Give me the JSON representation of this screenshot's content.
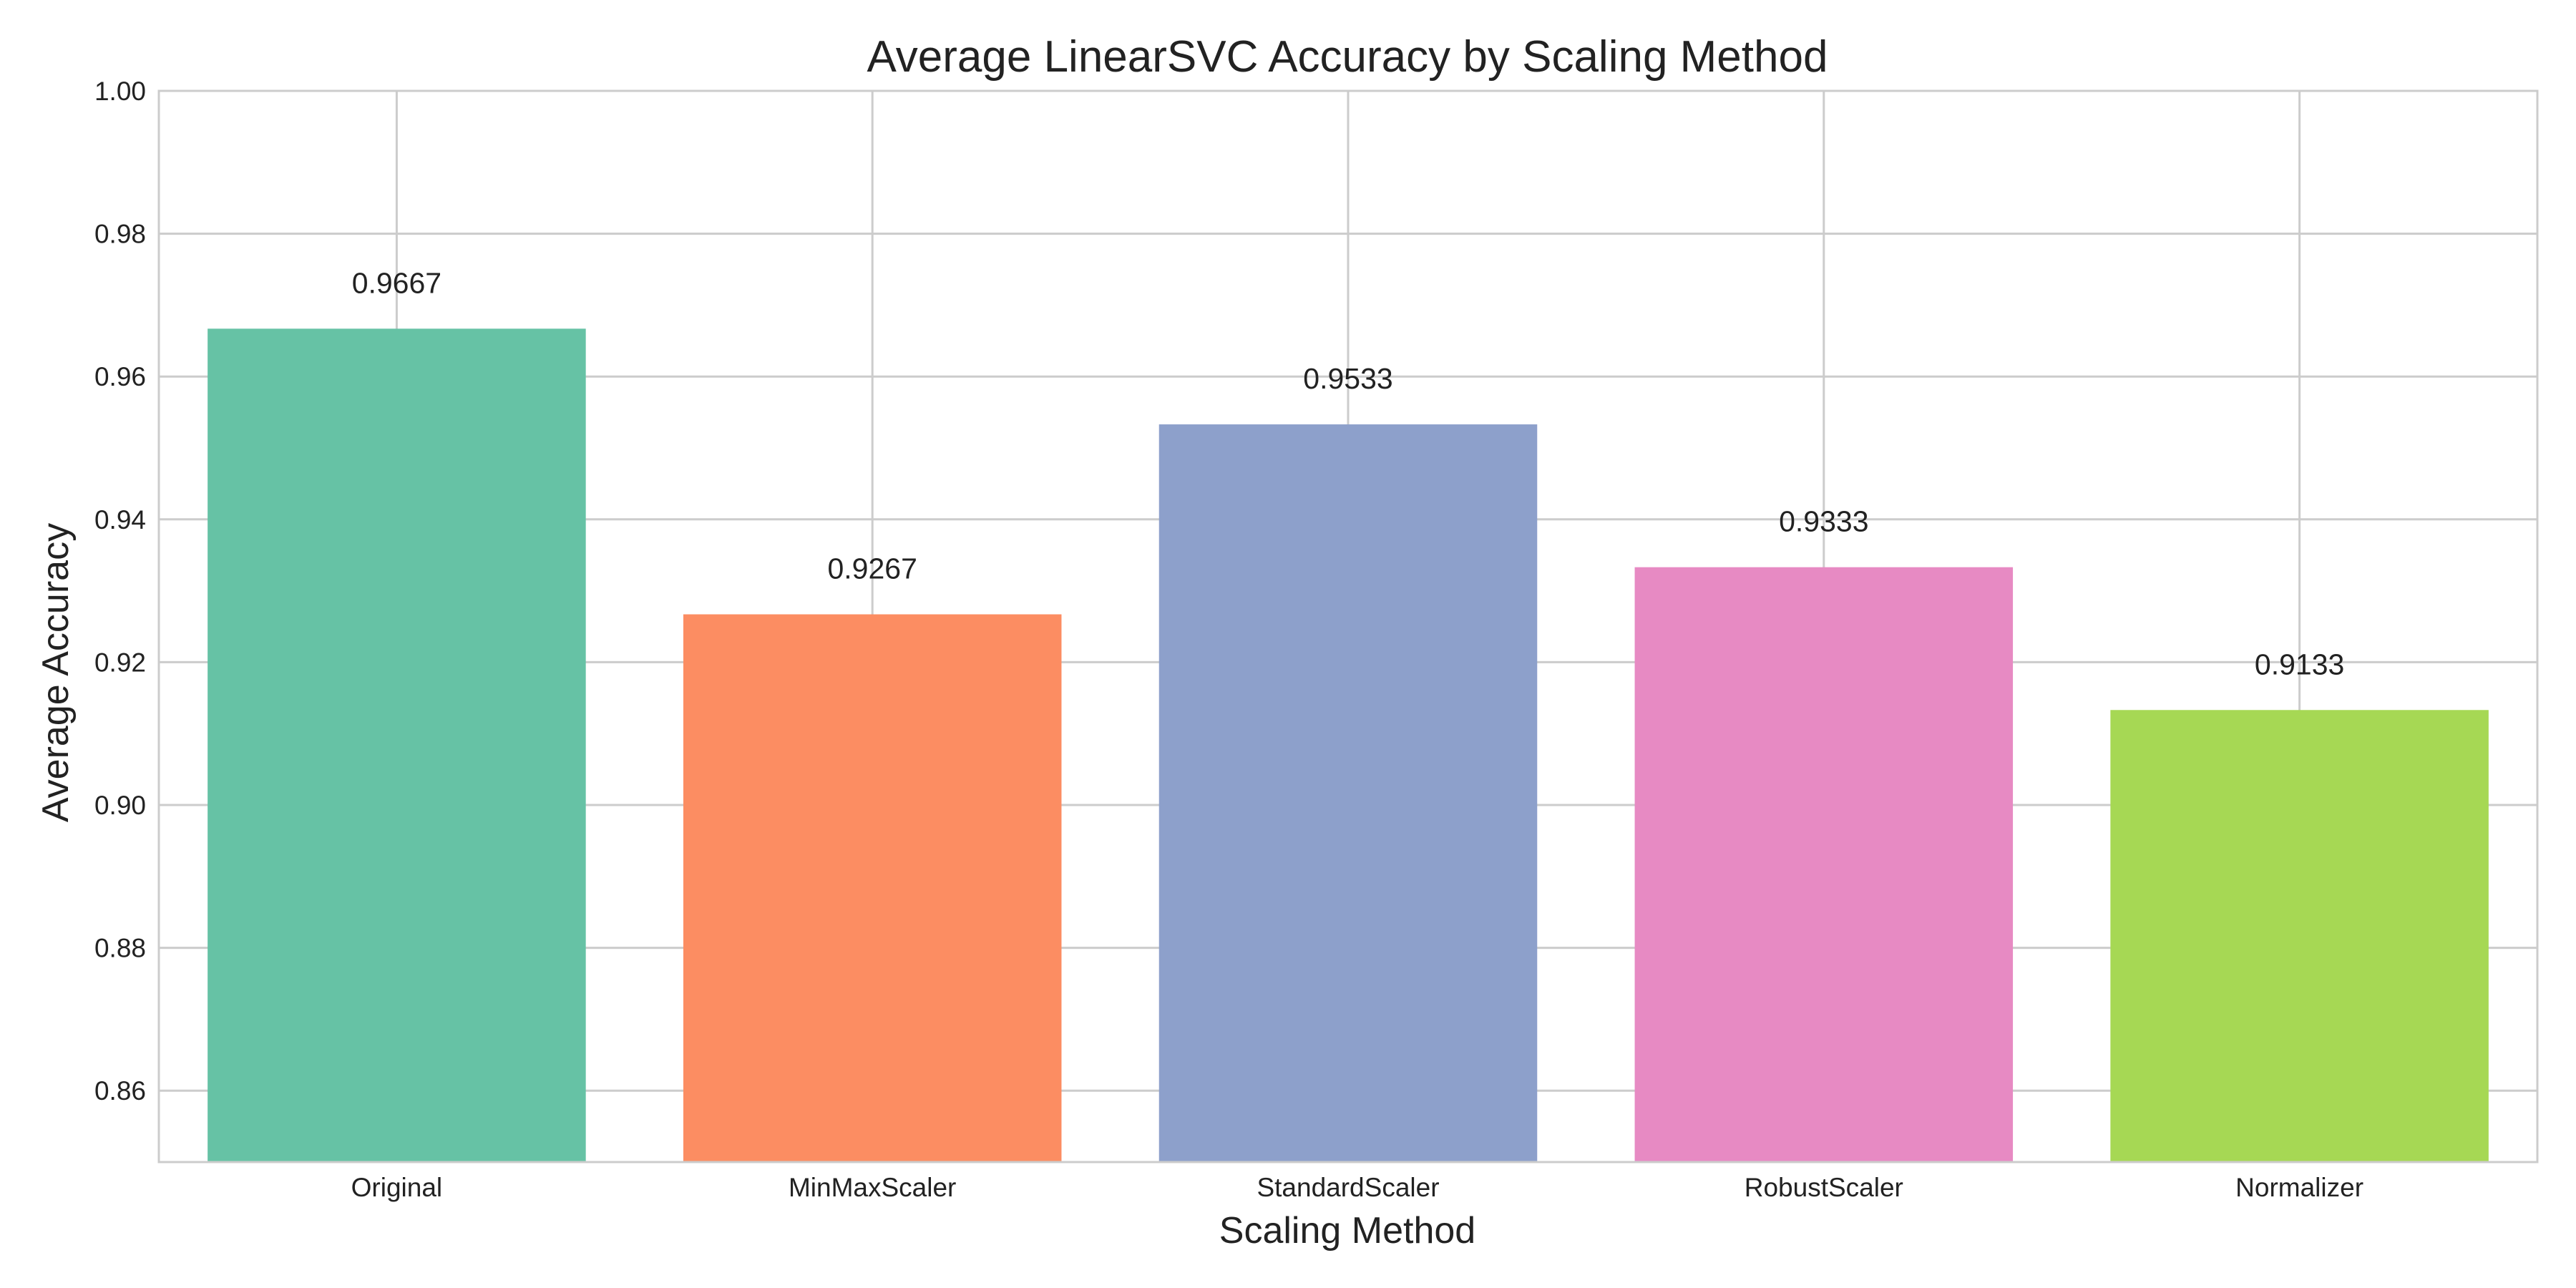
{
  "chart_data": {
    "type": "bar",
    "title": "Average LinearSVC Accuracy by Scaling Method",
    "xlabel": "Scaling Method",
    "ylabel": "Average Accuracy",
    "categories": [
      "Original",
      "MinMaxScaler",
      "StandardScaler",
      "RobustScaler",
      "Normalizer"
    ],
    "values": [
      0.9667,
      0.9267,
      0.9533,
      0.9333,
      0.9133
    ],
    "data_labels": [
      "0.9667",
      "0.9267",
      "0.9533",
      "0.9333",
      "0.9133"
    ],
    "colors": [
      "#66c2a5",
      "#fc8d62",
      "#8da0cb",
      "#e78ac3",
      "#a6d854"
    ],
    "ylim": [
      0.85,
      1.0
    ],
    "yticks": [
      0.86,
      0.88,
      0.9,
      0.92,
      0.94,
      0.96,
      0.98,
      1.0
    ],
    "ytick_labels": [
      "0.86",
      "0.88",
      "0.90",
      "0.92",
      "0.94",
      "0.96",
      "0.98",
      "1.00"
    ],
    "grid": true,
    "grid_color": "#cccccc",
    "spine_color": "#cccccc"
  }
}
